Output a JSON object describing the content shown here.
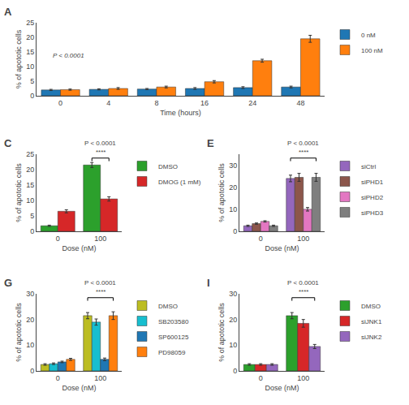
{
  "chart_data": [
    {
      "type": "bar",
      "title": "A",
      "xlabel": "Time (hours)",
      "ylabel": "% of apototic cells",
      "categories": [
        "0",
        "4",
        "8",
        "16",
        "24",
        "48"
      ],
      "series": [
        {
          "name": "0 nM",
          "values": [
            2.0,
            2.2,
            2.3,
            2.5,
            2.8,
            3.0
          ],
          "errors": [
            0.2,
            0.2,
            0.2,
            0.3,
            0.3,
            0.3
          ]
        },
        {
          "name": "100 nM",
          "values": [
            2.1,
            2.5,
            3.0,
            4.8,
            12.0,
            19.5
          ],
          "errors": [
            0.2,
            0.3,
            0.3,
            0.4,
            0.5,
            1.2
          ]
        }
      ],
      "ylim": [
        0,
        25
      ],
      "yticks": [
        0,
        5,
        10,
        15,
        20,
        25
      ],
      "grid": false,
      "legend": "upper right",
      "annotations": [
        {
          "text": "P < 0.0001"
        }
      ]
    },
    {
      "type": "bar",
      "title": "C",
      "xlabel": "Dose (nM)",
      "ylabel": "% of apototic cells",
      "categories": [
        "0",
        "100"
      ],
      "series": [
        {
          "name": "DMSO",
          "values": [
            1.8,
            21.5
          ],
          "errors": [
            0.2,
            0.8
          ]
        },
        {
          "name": "DMOG (1 mM)",
          "values": [
            6.5,
            10.5
          ],
          "errors": [
            0.5,
            0.7
          ]
        }
      ],
      "ylim": [
        0,
        25
      ],
      "yticks": [
        0,
        5,
        10,
        15,
        20,
        25
      ],
      "grid": false,
      "legend": "upper right",
      "annotations": [
        {
          "text": "P < 0.0001",
          "category": "100"
        },
        {
          "text": "****",
          "category": "100"
        }
      ]
    },
    {
      "type": "bar",
      "title": "E",
      "xlabel": "Dose (nM)",
      "ylabel": "% of apototic cells",
      "categories": [
        "0",
        "100"
      ],
      "series": [
        {
          "name": "siCtrl",
          "values": [
            2.5,
            24.0
          ],
          "errors": [
            0.3,
            1.5
          ]
        },
        {
          "name": "siPHD1",
          "values": [
            3.5,
            24.5
          ],
          "errors": [
            0.3,
            1.8
          ]
        },
        {
          "name": "siPHD2",
          "values": [
            4.5,
            10.0
          ],
          "errors": [
            0.3,
            0.8
          ]
        },
        {
          "name": "siPHD3",
          "values": [
            2.5,
            24.5
          ],
          "errors": [
            0.3,
            1.8
          ]
        }
      ],
      "ylim": [
        0,
        35
      ],
      "yticks": [
        0,
        10,
        20,
        30
      ],
      "grid": false,
      "legend": "upper right",
      "annotations": [
        {
          "text": "P < 0.0001",
          "category": "100"
        },
        {
          "text": "****",
          "category": "100"
        }
      ]
    },
    {
      "type": "bar",
      "title": "G",
      "xlabel": "Dose (nM)",
      "ylabel": "% of apototic cells",
      "categories": [
        "0",
        "100"
      ],
      "series": [
        {
          "name": "DMSO",
          "values": [
            2.5,
            21.5
          ],
          "errors": [
            0.3,
            1.2
          ]
        },
        {
          "name": "SB203580",
          "values": [
            2.8,
            19.0
          ],
          "errors": [
            0.3,
            1.2
          ]
        },
        {
          "name": "SP600125",
          "values": [
            3.5,
            4.5
          ],
          "errors": [
            0.3,
            0.5
          ]
        },
        {
          "name": "PD98059",
          "values": [
            4.5,
            21.5
          ],
          "errors": [
            0.4,
            1.5
          ]
        }
      ],
      "ylim": [
        0,
        30
      ],
      "yticks": [
        0,
        10,
        20,
        30
      ],
      "grid": false,
      "legend": "upper right",
      "annotations": [
        {
          "text": "P < 0.0001",
          "category": "100"
        },
        {
          "text": "****",
          "category": "100"
        }
      ]
    },
    {
      "type": "bar",
      "title": "I",
      "xlabel": "Dose (nM)",
      "ylabel": "% of apototic cells",
      "categories": [
        "0",
        "100"
      ],
      "series": [
        {
          "name": "DMSO",
          "values": [
            2.5,
            21.5
          ],
          "errors": [
            0.3,
            1.2
          ]
        },
        {
          "name": "siJNK1",
          "values": [
            2.5,
            18.5
          ],
          "errors": [
            0.3,
            1.5
          ]
        },
        {
          "name": "siJNK2",
          "values": [
            2.5,
            9.5
          ],
          "errors": [
            0.3,
            0.8
          ]
        }
      ],
      "ylim": [
        0,
        30
      ],
      "yticks": [
        0,
        10,
        20,
        30
      ],
      "grid": false,
      "legend": "upper right",
      "annotations": [
        {
          "text": "P < 0.0001",
          "category": "100"
        },
        {
          "text": "****",
          "category": "100"
        }
      ]
    }
  ]
}
